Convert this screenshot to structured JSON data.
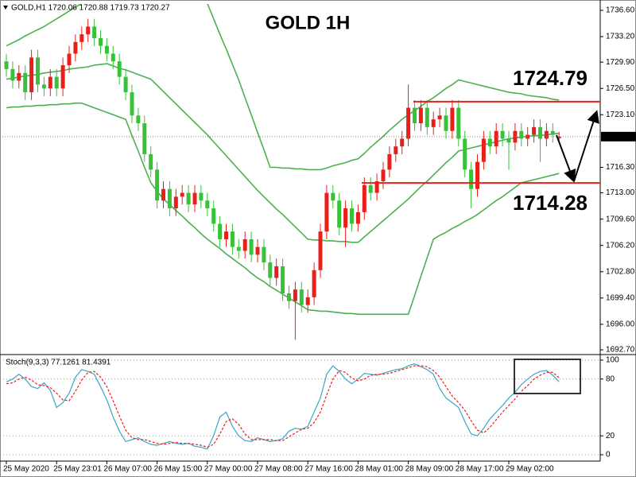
{
  "chart_data": [
    {
      "type": "candlestick",
      "title": "GOLD 1H",
      "header": "GOLD,H1  1720.06 1720.88 1719.73 1720.27",
      "categories": [
        "25 May 2020",
        null,
        null,
        null,
        null,
        null,
        null,
        null,
        "25 May 23:01",
        null,
        null,
        null,
        null,
        null,
        null,
        null,
        "26 May 07:00",
        null,
        null,
        null,
        null,
        null,
        null,
        null,
        "26 May 15:00",
        null,
        null,
        null,
        null,
        null,
        null,
        null,
        "27 May 00:00",
        null,
        null,
        null,
        null,
        null,
        null,
        null,
        "27 May 08:00",
        null,
        null,
        null,
        null,
        null,
        null,
        null,
        "27 May 16:00",
        null,
        null,
        null,
        null,
        null,
        null,
        null,
        "28 May 01:00",
        null,
        null,
        null,
        null,
        null,
        null,
        null,
        "28 May 09:00",
        null,
        null,
        null,
        null,
        null,
        null,
        null,
        "28 May 17:00",
        null,
        null,
        null,
        null,
        null,
        null,
        null,
        "29 May 02:00",
        null,
        null,
        null,
        null,
        null,
        null,
        null,
        null
      ],
      "open": [
        1730,
        1729,
        1727.5,
        1728.5,
        1726,
        1730.5,
        1727,
        1726.5,
        1728,
        1726.5,
        1729.5,
        1731,
        1732.5,
        1733.5,
        1734.5,
        1733,
        1732,
        1731,
        1730,
        1728,
        1726,
        1723,
        1722,
        1718,
        1716,
        1712,
        1713.5,
        1711,
        1712.5,
        1713,
        1711.5,
        1713,
        1712,
        1711,
        1709,
        1707,
        1708,
        1706,
        1705.5,
        1707,
        1705,
        1706,
        1704,
        1702,
        1703.5,
        1700,
        1699,
        1700.5,
        1698.5,
        1699.5,
        1703,
        1708,
        1713,
        1712,
        1708.5,
        1711,
        1709,
        1710.5,
        1714,
        1713,
        1714.5,
        1716,
        1718,
        1719,
        1720,
        1724,
        1722,
        1724,
        1721.5,
        1722.5,
        1723,
        1721,
        1724,
        1720,
        1716,
        1713.5,
        1717,
        1720,
        1719,
        1721,
        1720,
        1719.5,
        1721,
        1720,
        1720.5,
        1721.5,
        1720,
        1721,
        1720.06
      ],
      "high": [
        1731,
        1730,
        1729.5,
        1729.5,
        1731.5,
        1731.5,
        1728,
        1729,
        1729,
        1730.5,
        1732,
        1733.5,
        1734.5,
        1735.5,
        1735.5,
        1734,
        1733,
        1732,
        1731,
        1729,
        1727,
        1724,
        1723,
        1719,
        1717,
        1714.5,
        1714.5,
        1713.5,
        1714,
        1714,
        1714,
        1714,
        1713,
        1712,
        1710,
        1709,
        1709,
        1707,
        1708,
        1708,
        1707,
        1707,
        1705,
        1704.5,
        1704.5,
        1701,
        1701.5,
        1701.5,
        1700.5,
        1704,
        1709,
        1714,
        1714,
        1713,
        1712,
        1712,
        1711.5,
        1715,
        1715,
        1715.5,
        1717,
        1719,
        1720,
        1721,
        1727,
        1725,
        1725,
        1725,
        1723.5,
        1724,
        1724,
        1725,
        1725,
        1721,
        1717,
        1718,
        1721,
        1721,
        1722,
        1722,
        1721,
        1722,
        1722,
        1721.5,
        1722.5,
        1722.5,
        1722,
        1722,
        1720.88
      ],
      "low": [
        1728,
        1726.5,
        1726.5,
        1725,
        1725,
        1726,
        1725.5,
        1725.5,
        1725.5,
        1725.5,
        1728.5,
        1730,
        1731.5,
        1732.5,
        1732,
        1731,
        1730,
        1729,
        1727,
        1725,
        1722,
        1721,
        1717,
        1715,
        1711,
        1711,
        1710,
        1710,
        1711.5,
        1710.5,
        1710.5,
        1711,
        1710,
        1708,
        1706,
        1706,
        1705,
        1704.5,
        1704.5,
        1704,
        1704,
        1703,
        1701,
        1701,
        1699,
        1698,
        1694,
        1697.5,
        1697.5,
        1698.5,
        1702,
        1707,
        1711,
        1707.5,
        1706,
        1708,
        1708,
        1709.5,
        1712,
        1712,
        1713.5,
        1715,
        1717,
        1718,
        1719,
        1721,
        1721,
        1720.5,
        1720.5,
        1721.5,
        1720,
        1720,
        1719,
        1715,
        1711,
        1712.5,
        1716,
        1718,
        1718,
        1719,
        1716,
        1718.5,
        1719,
        1719,
        1719.5,
        1717,
        1719,
        1719.5,
        1719.73
      ],
      "close": [
        1729,
        1727.5,
        1728.5,
        1726,
        1730.5,
        1727,
        1726.5,
        1728,
        1726.5,
        1729.5,
        1731,
        1732.5,
        1733.5,
        1734.5,
        1733,
        1732,
        1731,
        1730,
        1728,
        1726,
        1723,
        1722,
        1718,
        1716,
        1712,
        1713.5,
        1711,
        1712.5,
        1713,
        1711.5,
        1713,
        1712,
        1711,
        1709,
        1707,
        1708,
        1706,
        1705.5,
        1707,
        1705,
        1706,
        1704,
        1702,
        1703.5,
        1700,
        1699,
        1700.5,
        1698.5,
        1699.5,
        1703,
        1708,
        1713,
        1712,
        1708.5,
        1711,
        1709,
        1710.5,
        1714,
        1713,
        1714.5,
        1716,
        1718,
        1719,
        1720,
        1724,
        1722,
        1724,
        1721.5,
        1722.5,
        1723,
        1721,
        1724,
        1720,
        1716,
        1713.5,
        1717,
        1720,
        1719,
        1721,
        1720,
        1719.5,
        1721,
        1720,
        1720.5,
        1721.5,
        1720,
        1721,
        1720.5,
        1720.27
      ],
      "up_color": "#e8201c",
      "down_color": "#39c13a",
      "bands": [
        {
          "color": "#4cb050",
          "values": [
            1732,
            1732.4,
            1732.8,
            1733.3,
            1733.7,
            1734.1,
            1734.5,
            1735,
            1735.5,
            1736,
            1736.5,
            1737,
            1737.5,
            1737.6,
            1737.6,
            1737.7,
            1737.7,
            1737.8,
            1737.8,
            1737.9,
            1738,
            1738,
            1738,
            1738,
            1737.9,
            1737.9,
            1737.8,
            1737.8,
            1737.7,
            1737.7,
            1737.6,
            1737.6,
            1737.5,
            1735.5,
            1733.5,
            1731.6,
            1729.6,
            1727.6,
            1725.3,
            1723.1,
            1720.8,
            1718.6,
            1716.3,
            1716.3,
            1716.2,
            1716.2,
            1716.1,
            1716.1,
            1716,
            1716,
            1716,
            1716.2,
            1716.5,
            1716.7,
            1716.9,
            1717.2,
            1717.4,
            1718.1,
            1718.9,
            1719.6,
            1720.3,
            1721.1,
            1721.8,
            1722.5,
            1723.1,
            1723.6,
            1724.2,
            1724.8,
            1725.3,
            1725.9,
            1726.5,
            1727,
            1727.6,
            1727.4,
            1727.2,
            1727,
            1726.8,
            1726.6,
            1726.4,
            1726.2,
            1726,
            1725.9,
            1725.8,
            1725.6,
            1725.5,
            1725.4,
            1725.3,
            1725.1,
            1725
          ]
        },
        {
          "color": "#4cb050",
          "values": [
            1727.7,
            1727.8,
            1728,
            1728.1,
            1728.2,
            1728.3,
            1728.5,
            1728.6,
            1728.7,
            1728.8,
            1729,
            1729.1,
            1729.2,
            1729.3,
            1729.5,
            1729.6,
            1729.7,
            1729.4,
            1729.1,
            1728.9,
            1728.6,
            1728.3,
            1728,
            1727.7,
            1726.9,
            1726.1,
            1725.3,
            1724.5,
            1723.7,
            1722.9,
            1722.1,
            1721.3,
            1720.5,
            1719.6,
            1718.7,
            1717.8,
            1716.9,
            1716,
            1715.1,
            1714.2,
            1713.3,
            1712.5,
            1711.7,
            1710.9,
            1710.2,
            1709.4,
            1708.6,
            1707.8,
            1707,
            1706.9,
            1706.9,
            1706.8,
            1706.8,
            1706.7,
            1706.7,
            1706.6,
            1706.6,
            1707.3,
            1708,
            1708.7,
            1709.4,
            1710.1,
            1710.8,
            1711.5,
            1712.2,
            1713,
            1713.8,
            1714.5,
            1715.3,
            1716.1,
            1716.9,
            1717.6,
            1718.4,
            1718.6,
            1718.8,
            1719,
            1719.2,
            1719.4,
            1719.6,
            1719.8,
            1720,
            1720.1,
            1720.2,
            1720.3,
            1720.4,
            1720.4,
            1720.5,
            1720.6,
            1720.7
          ]
        },
        {
          "color": "#4cb050",
          "values": [
            1724,
            1724.1,
            1724.1,
            1724.2,
            1724.2,
            1724.3,
            1724.3,
            1724.4,
            1724.4,
            1724.5,
            1724.5,
            1724.6,
            1724.6,
            1724.3,
            1724,
            1723.7,
            1723.4,
            1723.1,
            1722.8,
            1722.5,
            1720.4,
            1718.4,
            1716.3,
            1714.3,
            1713.2,
            1712.2,
            1711.5,
            1710.7,
            1710,
            1709.2,
            1708.5,
            1707.7,
            1707,
            1706.4,
            1705.8,
            1705.1,
            1704.5,
            1703.9,
            1703.3,
            1702.6,
            1702,
            1701.5,
            1700.9,
            1700.4,
            1699.9,
            1699.4,
            1698.9,
            1698.4,
            1697.9,
            1697.8,
            1697.7,
            1697.7,
            1697.6,
            1697.5,
            1697.4,
            1697.4,
            1697.3,
            1697.3,
            1697.3,
            1697.3,
            1697.3,
            1697.3,
            1697.3,
            1697.3,
            1697.3,
            1699.7,
            1702.2,
            1704.6,
            1707,
            1707.5,
            1707.9,
            1708.4,
            1708.8,
            1709.3,
            1709.7,
            1710.2,
            1710.8,
            1711.4,
            1712,
            1712.5,
            1713.1,
            1713.7,
            1714.3,
            1714.5,
            1714.7,
            1714.9,
            1715.1,
            1715.3,
            1715.5
          ]
        }
      ],
      "levels": [
        1724.79,
        1714.28
      ],
      "level_color": "#e8201c",
      "last_price": 1720.27,
      "ylim": [
        1692.19,
        1737.42
      ],
      "yticks": [
        {
          "value": 1736.6,
          "label": "1736.60"
        },
        {
          "value": 1733.2,
          "label": "1733.20"
        },
        {
          "value": 1729.9,
          "label": "1729.90"
        },
        {
          "value": 1726.5,
          "label": "1726.50"
        },
        {
          "value": 1723.1,
          "label": "1723.10"
        },
        {
          "value": 1716.3,
          "label": "1716.30"
        },
        {
          "value": 1713,
          "label": "1713.00"
        },
        {
          "value": 1709.6,
          "label": "1709.60"
        },
        {
          "value": 1706.2,
          "label": "1706.20"
        },
        {
          "value": 1702.8,
          "label": "1702.80"
        },
        {
          "value": 1699.4,
          "label": "1699.40"
        },
        {
          "value": 1696,
          "label": "1696.00"
        },
        {
          "value": 1692.7,
          "label": "1692.70"
        }
      ]
    },
    {
      "type": "line",
      "title": "Stoch(9,3,3) 77.1261 81.4391",
      "ylim": [
        -6.7,
        105
      ],
      "yticks": [
        0,
        20,
        80,
        100
      ],
      "grid": true,
      "series": [
        {
          "color": "#3aa6c9",
          "dashed": false,
          "values": [
            77,
            80,
            85,
            80,
            72,
            70,
            76,
            68,
            50,
            55,
            65,
            82,
            90,
            88,
            85,
            72,
            58,
            40,
            25,
            14,
            16,
            18,
            14,
            11,
            10,
            12,
            14,
            12,
            11,
            12,
            9,
            8,
            6,
            20,
            40,
            45,
            30,
            20,
            15,
            14,
            18,
            16,
            14,
            15,
            17,
            25,
            28,
            27,
            30,
            45,
            60,
            85,
            94,
            88,
            80,
            75,
            80,
            86,
            85,
            84,
            86,
            88,
            90,
            91,
            94,
            96,
            93,
            90,
            85,
            70,
            60,
            55,
            50,
            35,
            22,
            20,
            28,
            38,
            45,
            52,
            60,
            66,
            74,
            80,
            85,
            88,
            89,
            84,
            77.1261
          ]
        },
        {
          "color": "#e8201c",
          "dashed": true,
          "values": [
            75,
            76,
            80,
            82,
            79,
            74,
            73,
            71,
            65,
            58,
            57,
            67,
            79,
            87,
            88,
            82,
            72,
            57,
            41,
            26,
            18,
            16,
            16,
            14,
            12,
            11,
            12,
            13,
            12,
            12,
            11,
            10,
            8,
            11,
            22,
            35,
            38,
            32,
            22,
            16,
            16,
            16,
            16,
            15,
            15,
            19,
            23,
            27,
            28,
            34,
            45,
            63,
            80,
            89,
            87,
            81,
            78,
            80,
            84,
            85,
            85,
            86,
            88,
            90,
            92,
            94,
            94,
            93,
            89,
            82,
            72,
            62,
            55,
            47,
            36,
            26,
            23,
            29,
            37,
            45,
            52,
            59,
            67,
            73,
            80,
            84,
            87,
            87,
            81.4391
          ]
        }
      ]
    }
  ]
}
